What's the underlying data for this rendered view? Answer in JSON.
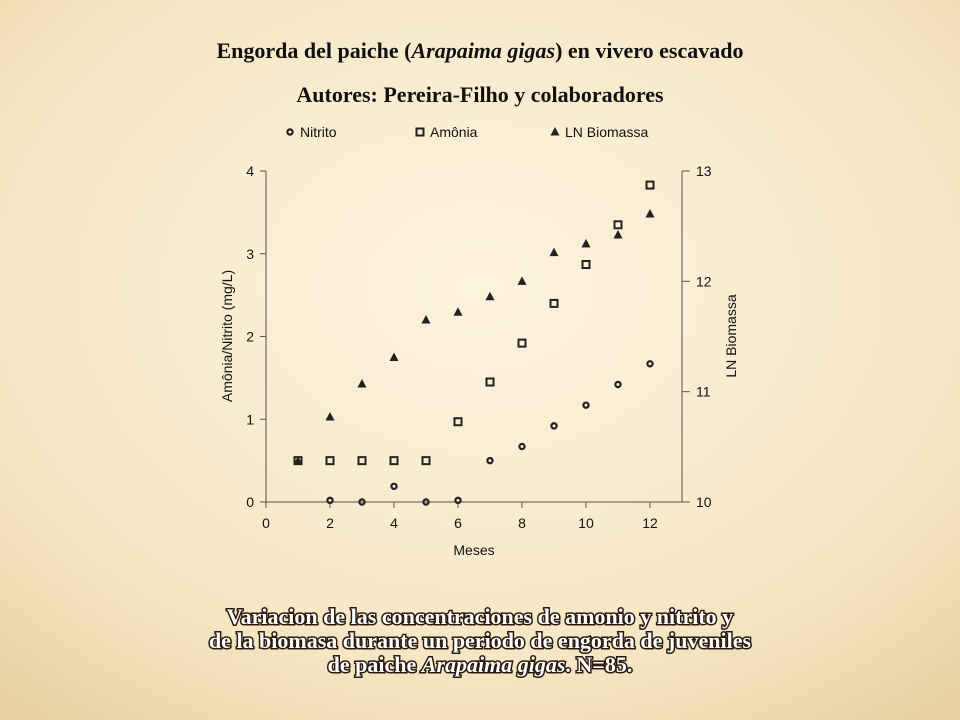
{
  "chart_data": {
    "type": "scatter",
    "title": [
      "Engorda del paiche (",
      "Arapaima gigas",
      ") en vivero escavado"
    ],
    "subtitle": "Autores: Pereira-Filho y colaboradores",
    "x_label": "Meses",
    "y_label": "Amônia/Nitrito (mg/L)",
    "y2_label": "LN Biomassa",
    "x": [
      1,
      2,
      3,
      4,
      5,
      6,
      7,
      8,
      9,
      10,
      11,
      12
    ],
    "series": [
      {
        "name": "Nitrito",
        "color": "#222222",
        "marker": "circle",
        "values": [
          null,
          0.02,
          0,
          0.19,
          0,
          0.02,
          0.5,
          0.67,
          0.92,
          1.17,
          1.42,
          1.67
        ]
      },
      {
        "name": "Amônia",
        "color": "#222222",
        "marker": "square",
        "values": [
          0.5,
          0.5,
          0.5,
          0.5,
          0.5,
          0.97,
          1.45,
          1.92,
          2.4,
          2.87,
          3.35,
          3.83
        ]
      },
      {
        "name": "LN Biomassa",
        "color": "#222222",
        "marker": "triangle",
        "axis": "y2",
        "values": [
          10.37,
          10.77,
          11.07,
          11.31,
          11.65,
          11.72,
          11.86,
          12.0,
          12.26,
          12.34,
          12.42,
          12.61
        ]
      }
    ],
    "xlim": [
      0,
      13
    ],
    "xticks": [
      0,
      2,
      4,
      6,
      8,
      10,
      12
    ],
    "ylim": [
      0,
      4
    ],
    "yticks": [
      0,
      1,
      2,
      3,
      4
    ],
    "y2lim": [
      10,
      13
    ],
    "y2ticks": [
      10,
      11,
      12,
      13
    ],
    "legend": "top",
    "caption": [
      [
        "Variacion de las concentraciones de amonio y nitrito y"
      ],
      [
        "de la biomasa durante un periodo de engorda de juveniles"
      ],
      [
        "de paiche ",
        "Arapaima gigas",
        ". N=85."
      ]
    ]
  }
}
